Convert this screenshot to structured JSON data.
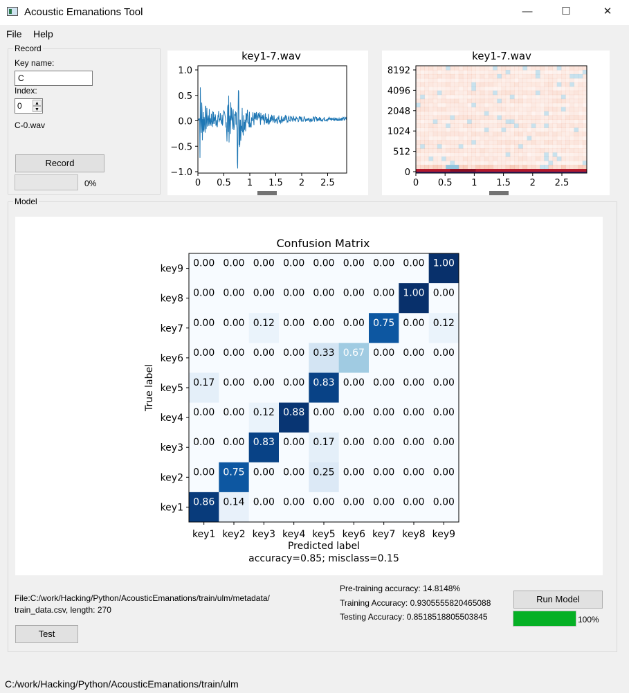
{
  "window": {
    "title": "Acoustic Emanations Tool",
    "controls": {
      "minimize": "—",
      "maximize": "☐",
      "close": "✕"
    }
  },
  "menu": {
    "file": "File",
    "help": "Help"
  },
  "record": {
    "group_title": "Record",
    "key_name_label": "Key name:",
    "key_name_value": "C",
    "index_label": "Index:",
    "index_value": "0",
    "filename": "C-0.wav",
    "record_button": "Record",
    "progress_percent": 0,
    "progress_text": "0%"
  },
  "waveform": {
    "title": "key1-7.wav",
    "x_ticks": [
      "0",
      "0.5",
      "1",
      "1.5",
      "2",
      "2.5"
    ],
    "y_ticks": [
      "1.0",
      "0.5",
      "0.0",
      "−0.5",
      "−1.0"
    ],
    "color": "#1f77b4"
  },
  "spectrogram": {
    "title": "key1-7.wav",
    "x_ticks": [
      "0",
      "0.5",
      "1",
      "1.5",
      "2",
      "2.5"
    ],
    "y_ticks": [
      "8192",
      "4096",
      "2048",
      "1024",
      "512",
      "0"
    ]
  },
  "model": {
    "group_title": "Model",
    "file_info_line1": "File:C:/work/Hacking/Python/AcousticEmanations/train/ulm/metadata/",
    "file_info_line2": "train_data.csv, length: 270",
    "test_button": "Test",
    "pretraining_accuracy": "Pre-training accuracy: 14.8148%",
    "training_accuracy": "Training Accuracy: 0.9305555820465088",
    "testing_accuracy": "Testing Accuracy: 0.8518518805503845",
    "run_button": "Run Model",
    "progress_percent": 100,
    "progress_text": "100%",
    "progress_color": "#06b025"
  },
  "chart_data": {
    "type": "heatmap",
    "title": "Confusion Matrix",
    "xlabel": "Predicted label",
    "ylabel": "True label",
    "caption": "accuracy=0.85; misclass=0.15",
    "x_labels": [
      "key1",
      "key2",
      "key3",
      "key4",
      "key5",
      "key6",
      "key7",
      "key8",
      "key9"
    ],
    "y_labels": [
      "key9",
      "key8",
      "key7",
      "key6",
      "key5",
      "key4",
      "key3",
      "key2",
      "key1"
    ],
    "values": [
      [
        0.0,
        0.0,
        0.0,
        0.0,
        0.0,
        0.0,
        0.0,
        0.0,
        1.0
      ],
      [
        0.0,
        0.0,
        0.0,
        0.0,
        0.0,
        0.0,
        0.0,
        1.0,
        0.0
      ],
      [
        0.0,
        0.0,
        0.12,
        0.0,
        0.0,
        0.0,
        0.75,
        0.0,
        0.12
      ],
      [
        0.0,
        0.0,
        0.0,
        0.0,
        0.33,
        0.67,
        0.0,
        0.0,
        0.0
      ],
      [
        0.17,
        0.0,
        0.0,
        0.0,
        0.83,
        0.0,
        0.0,
        0.0,
        0.0
      ],
      [
        0.0,
        0.0,
        0.12,
        0.88,
        0.0,
        0.0,
        0.0,
        0.0,
        0.0
      ],
      [
        0.0,
        0.0,
        0.83,
        0.0,
        0.17,
        0.0,
        0.0,
        0.0,
        0.0
      ],
      [
        0.0,
        0.75,
        0.0,
        0.0,
        0.25,
        0.0,
        0.0,
        0.0,
        0.0
      ],
      [
        0.86,
        0.14,
        0.0,
        0.0,
        0.0,
        0.0,
        0.0,
        0.0,
        0.0
      ]
    ],
    "colormap": "Blues"
  },
  "status": {
    "path": "C:/work/Hacking/Python/AcousticEmanations/train/ulm"
  }
}
